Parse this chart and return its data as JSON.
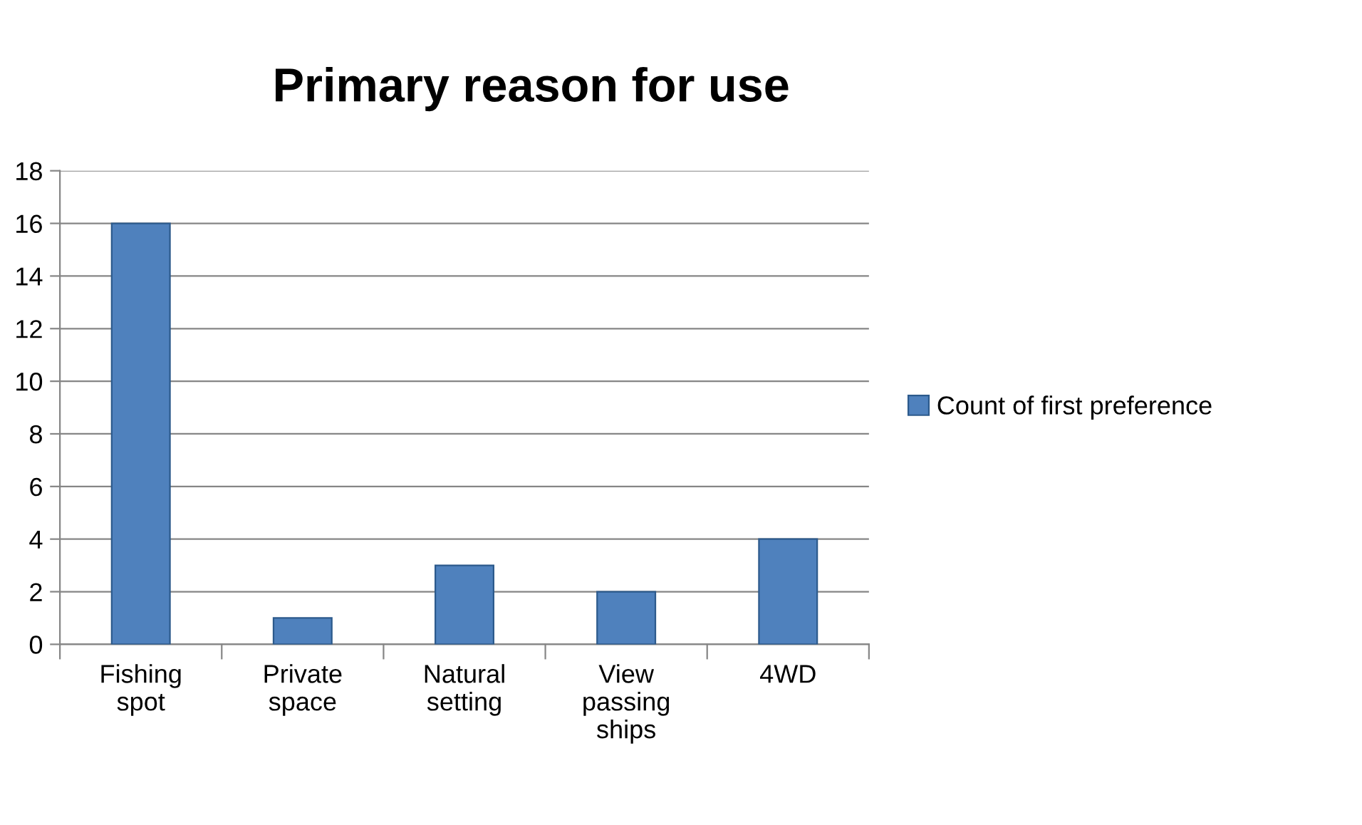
{
  "chart_data": {
    "type": "bar",
    "title": "Primary reason for use",
    "categories": [
      "Fishing spot",
      "Private space",
      "Natural setting",
      "View passing ships",
      "4WD"
    ],
    "series": [
      {
        "name": "Count of first preference",
        "color": "#4f81bd",
        "values": [
          16,
          1,
          3,
          2,
          4
        ]
      }
    ],
    "ylim": [
      0,
      18
    ],
    "yticks": [
      0,
      2,
      4,
      6,
      8,
      10,
      12,
      14,
      16,
      18
    ],
    "grid": "y",
    "legend": "right"
  }
}
